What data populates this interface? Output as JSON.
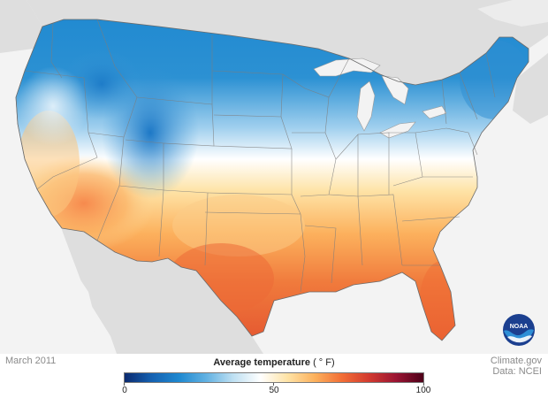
{
  "map": {
    "date_label": "March 2011",
    "credit_line1": "Climate.gov",
    "credit_line2": "Data: NCEI",
    "logo_text": "NOAA",
    "colors": {
      "background": "#f3f3f3",
      "neighbor_land": "#dedede",
      "water": "#f3f3f3",
      "state_borders": "#7d7d7d"
    }
  },
  "legend": {
    "title": "Average temperature",
    "unit": "( ° F)",
    "min": 0,
    "max": 100,
    "ticks": [
      "0",
      "50",
      "100"
    ],
    "colorscale": [
      "#0b2a6f",
      "#1561b1",
      "#1e88d0",
      "#61b1e2",
      "#bfe0f2",
      "#ffffff",
      "#fee3a6",
      "#fcb15d",
      "#f26e36",
      "#d23a2f",
      "#9a1432",
      "#4d0019"
    ]
  }
}
